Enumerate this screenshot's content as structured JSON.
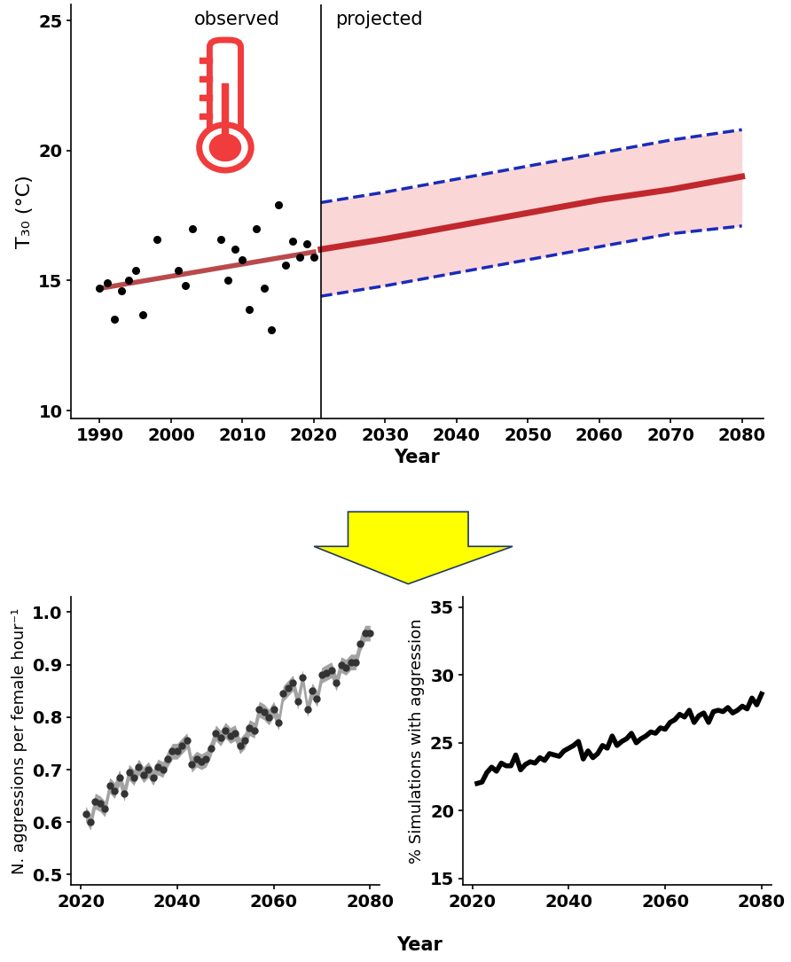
{
  "chart_data": [
    {
      "type": "scatter_line",
      "y_label": "T₃₀ (°C)",
      "x_label": "Year",
      "annotations": [
        "observed",
        "projected"
      ],
      "divider_x": 2021,
      "xlim": [
        1986,
        2083
      ],
      "xticks": [
        1990,
        2000,
        2010,
        2020,
        2030,
        2040,
        2050,
        2060,
        2070,
        2080
      ],
      "ylim": [
        9.7,
        25.6
      ],
      "yticks": [
        10,
        15,
        20,
        25
      ],
      "observed": {
        "x": [
          1990,
          1991,
          1992,
          1993,
          1994,
          1995,
          1996,
          1998,
          2001,
          2002,
          2003,
          2007,
          2008,
          2009,
          2010,
          2011,
          2012,
          2013,
          2014,
          2015,
          2016,
          2017,
          2018,
          2019,
          2020
        ],
        "values": [
          14.7,
          14.9,
          13.5,
          14.6,
          15.0,
          15.4,
          13.7,
          16.6,
          15.4,
          14.8,
          17.0,
          16.6,
          15.0,
          16.2,
          15.8,
          13.9,
          17.0,
          14.7,
          13.1,
          17.9,
          15.6,
          16.5,
          15.9,
          16.4,
          15.9
        ],
        "color": "#000000",
        "marker": "o"
      },
      "observed_trend": {
        "x": [
          1990,
          2020
        ],
        "values": [
          14.7,
          16.1
        ],
        "color": "#b94a4c"
      },
      "projected": {
        "x": [
          2021,
          2030,
          2040,
          2050,
          2060,
          2070,
          2080
        ],
        "values": [
          16.2,
          16.6,
          17.1,
          17.6,
          18.1,
          18.5,
          19.0
        ],
        "upper": [
          18.0,
          18.4,
          18.9,
          19.4,
          19.9,
          20.4,
          20.8
        ],
        "lower": [
          14.4,
          14.8,
          15.3,
          15.8,
          16.3,
          16.8,
          17.1
        ],
        "color": "#c0282d",
        "band_color": "#f4a6a6",
        "bound_color": "#1a2bb8",
        "line_style": "dashed"
      }
    },
    {
      "type": "line",
      "y_label": "N. aggressions per female hour⁻¹",
      "x_label": "Year",
      "xlim": [
        2018,
        2082
      ],
      "xticks": [
        2020,
        2040,
        2060,
        2080
      ],
      "ylim": [
        0.48,
        1.03
      ],
      "yticks": [
        0.5,
        0.6,
        0.7,
        0.8,
        0.9,
        {
          "value": 1,
          "label": "1.0"
        }
      ],
      "x": [
        2021,
        2022,
        2023,
        2024,
        2025,
        2026,
        2027,
        2028,
        2029,
        2030,
        2031,
        2032,
        2033,
        2034,
        2035,
        2036,
        2037,
        2038,
        2039,
        2040,
        2041,
        2042,
        2043,
        2044,
        2045,
        2046,
        2047,
        2048,
        2049,
        2050,
        2051,
        2052,
        2053,
        2054,
        2055,
        2056,
        2057,
        2058,
        2059,
        2060,
        2061,
        2062,
        2063,
        2064,
        2065,
        2066,
        2067,
        2068,
        2069,
        2070,
        2071,
        2072,
        2073,
        2074,
        2075,
        2076,
        2077,
        2078,
        2079,
        2080
      ],
      "values": [
        0.615,
        0.6,
        0.64,
        0.635,
        0.625,
        0.67,
        0.66,
        0.685,
        0.655,
        0.695,
        0.685,
        0.705,
        0.69,
        0.7,
        0.685,
        0.705,
        0.7,
        0.72,
        0.735,
        0.735,
        0.745,
        0.755,
        0.71,
        0.72,
        0.715,
        0.72,
        0.74,
        0.77,
        0.76,
        0.775,
        0.765,
        0.77,
        0.745,
        0.755,
        0.78,
        0.775,
        0.815,
        0.81,
        0.8,
        0.815,
        0.79,
        0.845,
        0.855,
        0.865,
        0.83,
        0.875,
        0.815,
        0.85,
        0.835,
        0.88,
        0.885,
        0.89,
        0.865,
        0.9,
        0.895,
        0.905,
        0.905,
        0.94,
        0.96,
        0.96
      ],
      "error": 0.015,
      "color": "#333333",
      "band_color": "#8c8c8c",
      "marker": "o"
    },
    {
      "type": "line",
      "y_label": "% Simulations with aggression",
      "xlim": [
        2018,
        2082
      ],
      "xticks": [
        2020,
        2040,
        2060,
        2080
      ],
      "ylim": [
        14.5,
        35.8
      ],
      "yticks": [
        15,
        20,
        25,
        30,
        35
      ],
      "x": [
        2021,
        2022,
        2023,
        2024,
        2025,
        2026,
        2027,
        2028,
        2029,
        2030,
        2031,
        2032,
        2033,
        2034,
        2035,
        2036,
        2037,
        2038,
        2039,
        2040,
        2041,
        2042,
        2043,
        2044,
        2045,
        2046,
        2047,
        2048,
        2049,
        2050,
        2051,
        2052,
        2053,
        2054,
        2055,
        2056,
        2057,
        2058,
        2059,
        2060,
        2061,
        2062,
        2063,
        2064,
        2065,
        2066,
        2067,
        2068,
        2069,
        2070,
        2071,
        2072,
        2073,
        2074,
        2075,
        2076,
        2077,
        2078,
        2079,
        2080
      ],
      "values": [
        22.0,
        22.1,
        22.8,
        23.2,
        22.9,
        23.5,
        23.3,
        23.3,
        24.1,
        23.0,
        23.4,
        23.6,
        23.5,
        23.9,
        23.7,
        24.2,
        24.1,
        24.0,
        24.4,
        24.6,
        24.8,
        25.1,
        23.8,
        24.4,
        23.9,
        24.2,
        24.8,
        24.6,
        25.5,
        24.8,
        25.1,
        25.3,
        25.7,
        25.0,
        25.3,
        25.5,
        25.8,
        25.7,
        26.1,
        26.0,
        26.5,
        26.7,
        27.1,
        26.9,
        27.4,
        26.5,
        27.0,
        27.2,
        26.5,
        27.3,
        27.4,
        27.3,
        27.6,
        27.2,
        27.4,
        27.7,
        27.5,
        28.3,
        27.8,
        28.6
      ],
      "color": "#000000"
    }
  ]
}
